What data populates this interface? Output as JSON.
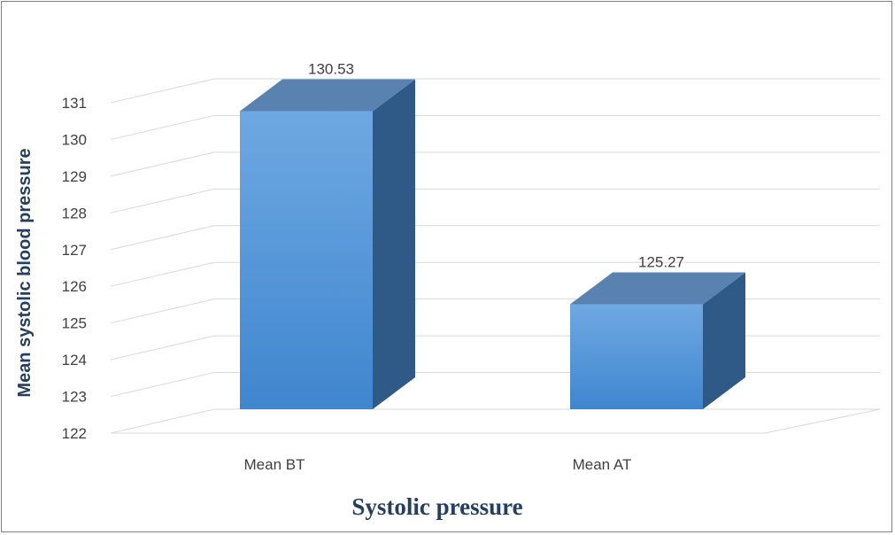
{
  "chart_data": {
    "type": "bar",
    "style": "3d-column",
    "categories": [
      "Mean BT",
      "Mean AT"
    ],
    "values": [
      130.53,
      125.27
    ],
    "data_labels": [
      "130.53",
      "125.27"
    ],
    "title": "",
    "xlabel": "Systolic pressure",
    "ylabel": "Mean systolic blood pressure",
    "ylim": [
      122,
      131
    ],
    "yticks": [
      122,
      123,
      124,
      125,
      126,
      127,
      128,
      129,
      130,
      131
    ],
    "grid": true,
    "legend": "none",
    "colors": {
      "bar_front_top": "#6fa8e2",
      "bar_front_bottom": "#3f86cf",
      "bar_side": "#2f5a88",
      "bar_top": "#5a82b0",
      "grid": "#d9d9d9",
      "axis_title": "#243f60"
    }
  }
}
